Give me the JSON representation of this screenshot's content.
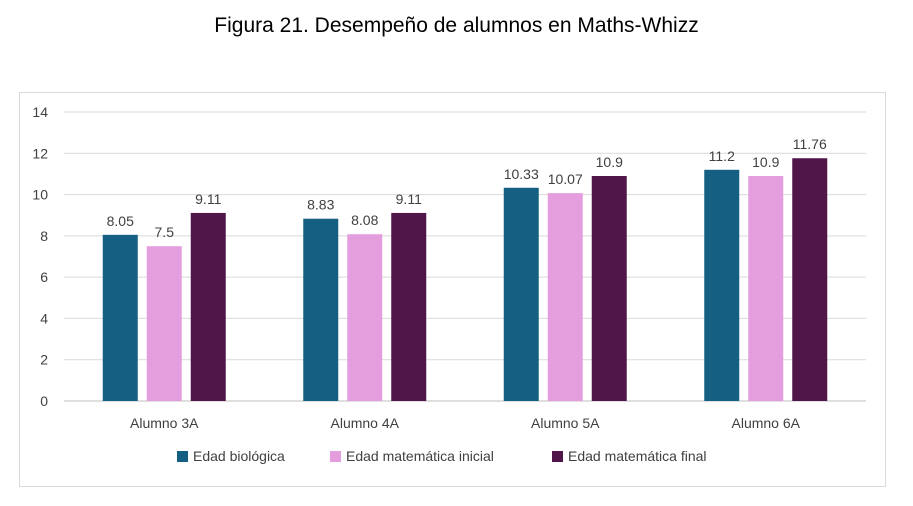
{
  "figure_title": "Figura 21. Desempeño de alumnos en Maths-Whizz",
  "chart_data": {
    "type": "bar",
    "title": "",
    "xlabel": "",
    "ylabel": "",
    "categories": [
      "Alumno 3A",
      "Alumno 4A",
      "Alumno 5A",
      "Alumno 6A"
    ],
    "series": [
      {
        "name": "Edad biológica",
        "values": [
          8.05,
          8.83,
          10.33,
          11.2
        ],
        "labels": [
          "8.05",
          "8.83",
          "10.33",
          "11.2"
        ],
        "color": "#156082"
      },
      {
        "name": "Edad matemática inicial",
        "values": [
          7.5,
          8.08,
          10.07,
          10.9
        ],
        "labels": [
          "7.5",
          "8.08",
          "10.07",
          "10.9"
        ],
        "color": "#e59edd"
      },
      {
        "name": "Edad matemática final",
        "values": [
          9.11,
          9.11,
          10.9,
          11.76
        ],
        "labels": [
          "9.11",
          "9.11",
          "10.9",
          "11.76"
        ],
        "color": "#501549"
      }
    ],
    "ylim": [
      0,
      14
    ],
    "yticks": [
      "0",
      "2",
      "4",
      "6",
      "8",
      "10",
      "12",
      "14"
    ],
    "grid": true,
    "legend_position": "bottom"
  }
}
